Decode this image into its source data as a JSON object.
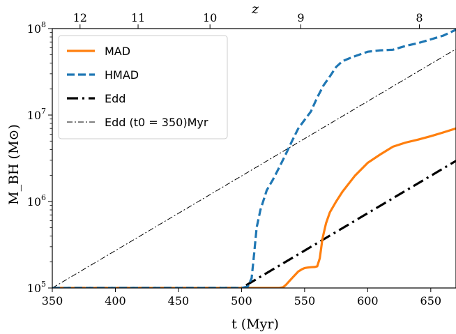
{
  "chart_data": {
    "type": "line",
    "xlabel": "t (Myr)",
    "ylabel": "M_BH (M⊙)",
    "top_axis_label": "z",
    "xlim": [
      350,
      670
    ],
    "ylim": [
      100000,
      100000000
    ],
    "y_scale": "log",
    "grid": false,
    "legend_position": "top-left",
    "x_ticks": [
      350,
      400,
      450,
      500,
      550,
      600,
      650
    ],
    "y_ticks": [
      {
        "value": 100000,
        "mantissa": "10",
        "exponent": "5"
      },
      {
        "value": 1000000,
        "mantissa": "10",
        "exponent": "6"
      },
      {
        "value": 10000000,
        "mantissa": "10",
        "exponent": "7"
      },
      {
        "value": 100000000,
        "mantissa": "10",
        "exponent": "8"
      }
    ],
    "top_ticks": [
      {
        "label": "12",
        "t": 372
      },
      {
        "label": "11",
        "t": 418
      },
      {
        "label": "10",
        "t": 475
      },
      {
        "label": "9",
        "t": 547
      },
      {
        "label": "8",
        "t": 641
      }
    ],
    "series": [
      {
        "name": "MAD",
        "color": "#ff7f0e",
        "style": "solid",
        "x": [
          350,
          500,
          530,
          533,
          535,
          540,
          545,
          548,
          550,
          552,
          555,
          558,
          560,
          562,
          563,
          564,
          565,
          567,
          570,
          575,
          580,
          590,
          600,
          610,
          620,
          630,
          640,
          650,
          660,
          670
        ],
        "y": [
          100000,
          100000,
          100000,
          102000,
          108000,
          130000,
          155000,
          165000,
          170000,
          172000,
          174000,
          175000,
          178000,
          220000,
          280000,
          360000,
          420000,
          560000,
          750000,
          1000000,
          1300000,
          2000000,
          2800000,
          3500000,
          4300000,
          4800000,
          5200000,
          5700000,
          6300000,
          7000000
        ]
      },
      {
        "name": "HMAD",
        "color": "#1f77b4",
        "style": "dashed",
        "x": [
          350,
          500,
          505,
          508,
          510,
          512,
          515,
          520,
          525,
          530,
          535,
          540,
          545,
          550,
          555,
          560,
          565,
          570,
          575,
          580,
          585,
          590,
          600,
          610,
          620,
          630,
          640,
          650,
          660,
          670
        ],
        "y": [
          100000,
          100000,
          104000,
          130000,
          250000,
          500000,
          800000,
          1350000,
          1800000,
          2500000,
          3500000,
          5000000,
          7000000,
          8800000,
          11000000,
          16000000,
          22000000,
          28000000,
          36000000,
          42000000,
          45000000,
          48000000,
          54000000,
          56000000,
          57000000,
          63000000,
          68000000,
          75000000,
          83000000,
          97000000
        ]
      },
      {
        "name": "Edd",
        "color": "#000000",
        "style": "dashdot-thick",
        "x": [
          350,
          500,
          670
        ],
        "y": [
          100000,
          100000,
          2950000
        ]
      },
      {
        "name": "Edd (t0 = 350)Myr",
        "color": "#000000",
        "style": "dashdot-thin",
        "x": [
          350,
          670
        ],
        "y": [
          100000,
          58000000
        ]
      }
    ]
  }
}
